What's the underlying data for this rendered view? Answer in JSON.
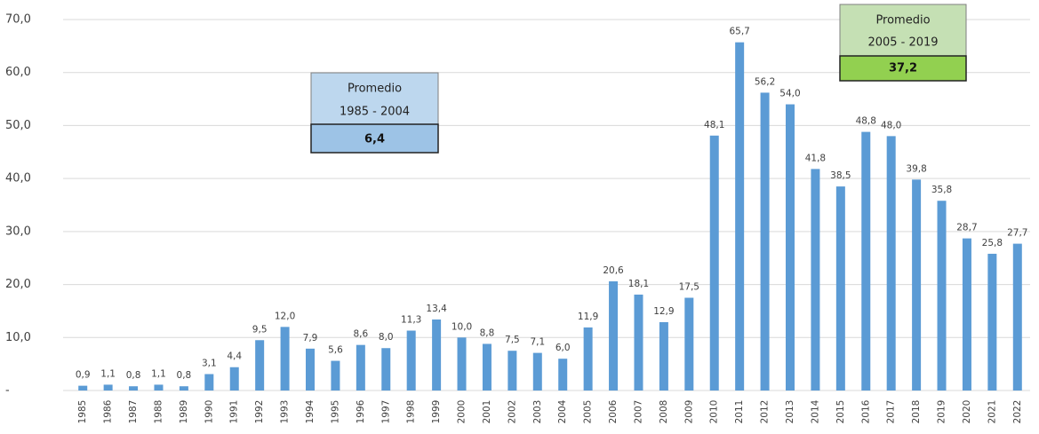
{
  "chart_data": {
    "type": "bar",
    "categories": [
      "1985",
      "1986",
      "1987",
      "1988",
      "1989",
      "1990",
      "1991",
      "1992",
      "1993",
      "1994",
      "1995",
      "1996",
      "1997",
      "1998",
      "1999",
      "2000",
      "2001",
      "2002",
      "2003",
      "2004",
      "2005",
      "2006",
      "2007",
      "2008",
      "2009",
      "2010",
      "2011",
      "2012",
      "2013",
      "2014",
      "2015",
      "2016",
      "2017",
      "2018",
      "2019",
      "2020",
      "2021",
      "2022"
    ],
    "values": [
      0.9,
      1.1,
      0.8,
      1.1,
      0.8,
      3.1,
      4.4,
      9.5,
      12.0,
      7.9,
      5.6,
      8.6,
      8.0,
      11.3,
      13.4,
      10.0,
      8.8,
      7.5,
      7.1,
      6.0,
      11.9,
      20.6,
      18.1,
      12.9,
      17.5,
      48.1,
      65.7,
      56.2,
      54.0,
      41.8,
      38.5,
      48.8,
      48.0,
      39.8,
      35.8,
      28.7,
      25.8,
      27.7
    ],
    "value_labels": [
      "0,9",
      "1,1",
      "0,8",
      "1,1",
      "0,8",
      "3,1",
      "4,4",
      "9,5",
      "12,0",
      "7,9",
      "5,6",
      "8,6",
      "8,0",
      "11,3",
      "13,4",
      "10,0",
      "8,8",
      "7,5",
      "7,1",
      "6,0",
      "11,9",
      "20,6",
      "18,1",
      "12,9",
      "17,5",
      "48,1",
      "65,7",
      "56,2",
      "54,0",
      "41,8",
      "38,5",
      "48,8",
      "48,0",
      "39,8",
      "35,8",
      "28,7",
      "25,8",
      "27,7"
    ],
    "color": "#5b9bd5",
    "ylim": [
      0,
      70
    ],
    "yticks": [
      {
        "value": 0,
        "label": "-"
      },
      {
        "value": 10,
        "label": "10,0"
      },
      {
        "value": 20,
        "label": "20,0"
      },
      {
        "value": 30,
        "label": "30,0"
      },
      {
        "value": 40,
        "label": "40,0"
      },
      {
        "value": 50,
        "label": "50,0"
      },
      {
        "value": 60,
        "label": "60,0"
      },
      {
        "value": 70,
        "label": "70,0"
      }
    ],
    "grid": true,
    "annotations": [
      {
        "title": "Promedio",
        "period": "1985 - 2004",
        "value": "6,4"
      },
      {
        "title": "Promedio",
        "period": "2005 - 2019",
        "value": "37,2"
      }
    ]
  }
}
